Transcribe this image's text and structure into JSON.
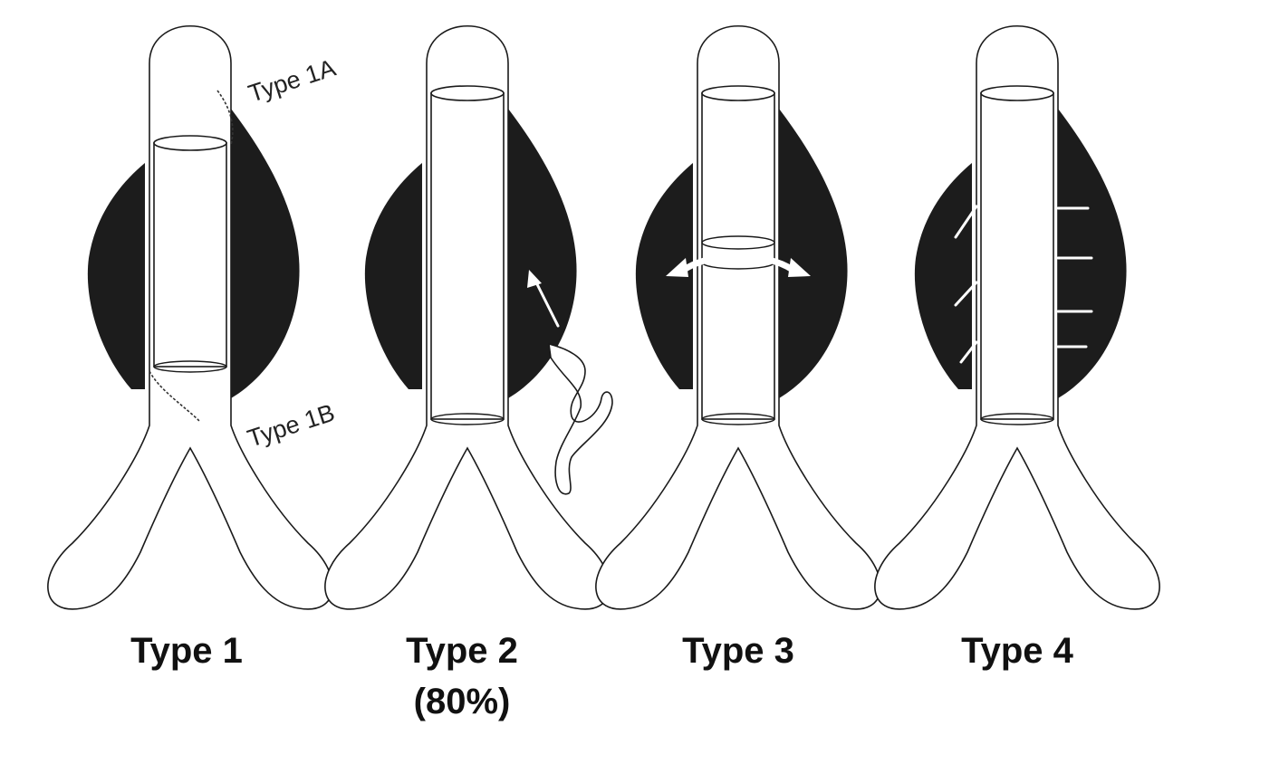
{
  "panels": [
    {
      "caption": "Type 1",
      "sublabel": "",
      "annotations": [
        "Type 1A",
        "Type 1B"
      ]
    },
    {
      "caption": "Type 2",
      "sublabel": "(80%)",
      "annotations": []
    },
    {
      "caption": "Type 3",
      "sublabel": "",
      "annotations": []
    },
    {
      "caption": "Type 4",
      "sublabel": "",
      "annotations": []
    }
  ],
  "colors": {
    "sac": "#1c1c1c",
    "outline": "#1a1a1a",
    "background": "#ffffff"
  }
}
